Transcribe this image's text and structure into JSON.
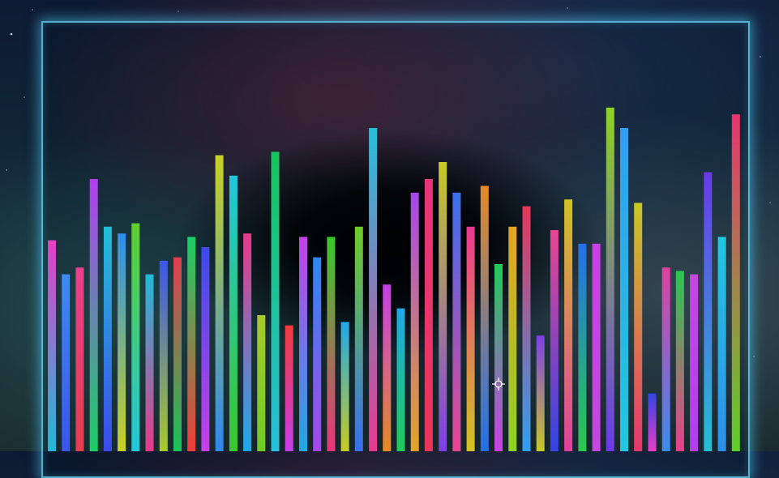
{
  "chart_data": {
    "type": "bar",
    "title": "",
    "xlabel": "",
    "ylabel": "",
    "ylim": [
      0,
      100
    ],
    "grid": false,
    "values": [
      62,
      52,
      54,
      80,
      66,
      64,
      67,
      52,
      56,
      57,
      63,
      60,
      87,
      81,
      64,
      40,
      88,
      37,
      63,
      57,
      63,
      38,
      66,
      95,
      49,
      42,
      76,
      80,
      85,
      76,
      66,
      78,
      55,
      66,
      72,
      34,
      65,
      74,
      61,
      61,
      101,
      95,
      73,
      17,
      54,
      53,
      52,
      82,
      63,
      99
    ],
    "colors": [
      "#e53fc6",
      "#3d8cf0",
      "#ea3f8d",
      "#b23ef0",
      "#25bed6",
      "#2d8fec",
      "#5fcf2a",
      "#22b9d8",
      "#3b55ea",
      "#e53c4e",
      "#19cf67",
      "#3b4bea",
      "#c8d223",
      "#20c7dc",
      "#e8398a",
      "#a9c92a",
      "#16c45a",
      "#ef3c3c",
      "#c640e8",
      "#2d88ef",
      "#39c82c",
      "#1ea9ea",
      "#6fcc24",
      "#25c0dc",
      "#c63fe8",
      "#20a8e6",
      "#a646ec",
      "#e8357b",
      "#c9ca22",
      "#3a6ff0",
      "#e8398f",
      "#e68a25",
      "#1fcb59",
      "#e4a428",
      "#e8355a",
      "#7d3fe8",
      "#e84592",
      "#d1c325",
      "#2470e8",
      "#c940e6",
      "#8ed224",
      "#2f9ff0",
      "#c7c828",
      "#3244e4",
      "#e0409f",
      "#2ac84e",
      "#c447e0",
      "#6a3ae8",
      "#20c8e0",
      "#e8356e"
    ]
  },
  "cursor": {
    "icon": "crosshair-icon"
  }
}
